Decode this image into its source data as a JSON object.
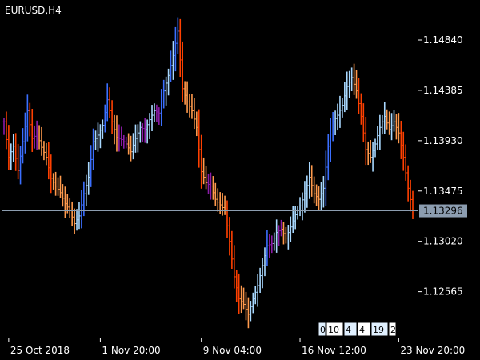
{
  "chart_data": {
    "type": "bar",
    "title": "EURUSD,H4",
    "chart_style": "OHLC bars, colored by indicator",
    "ylim": [
      1.1215,
      1.1518
    ],
    "y_ticks": [
      {
        "label": "1.14840",
        "value": 1.1484
      },
      {
        "label": "1.14385",
        "value": 1.14385
      },
      {
        "label": "1.13930",
        "value": 1.1393
      },
      {
        "label": "1.13475",
        "value": 1.13475
      },
      {
        "label": "1.13020",
        "value": 1.1302
      },
      {
        "label": "1.12565",
        "value": 1.12565
      }
    ],
    "x_ticks": [
      {
        "label": "25 Oct 2018",
        "index": 2
      },
      {
        "label": "1 Nov 20:00",
        "index": 41
      },
      {
        "label": "9 Nov 04:00",
        "index": 84
      },
      {
        "label": "16 Nov 12:00",
        "index": 126
      },
      {
        "label": "23 Nov 20:00",
        "index": 168
      }
    ],
    "current_price": {
      "label": "1.13296",
      "value": 1.13296
    },
    "grid": false,
    "colors": {
      "background": "#000000",
      "axis": "#ffffff",
      "bull_strong": "#3b6fff",
      "bull_weak": "#a8d8ff",
      "bear_strong": "#ff4000",
      "bear_weak": "#ff9a4d",
      "neutral": "#8b1ca8",
      "price_line": "#8c9db0",
      "price_label_bg": "#8c9db0"
    },
    "indicator_boxes": [
      {
        "label": "0",
        "color": "#e0f0ff"
      },
      {
        "label": "10",
        "color": "#ffffff"
      },
      {
        "label": "4",
        "color": "#e0f0ff"
      },
      {
        "label": "4",
        "color": "#ffffff"
      },
      {
        "label": "19",
        "color": "#e0f0ff"
      },
      {
        "label": "2",
        "color": "#ffffff"
      }
    ],
    "anchors": [
      [
        0,
        1.141
      ],
      [
        2,
        1.1378
      ],
      [
        4,
        1.1388
      ],
      [
        6,
        1.1366
      ],
      [
        8,
        1.1392
      ],
      [
        10,
        1.142
      ],
      [
        12,
        1.1395
      ],
      [
        14,
        1.1399
      ],
      [
        16,
        1.1387
      ],
      [
        18,
        1.1378
      ],
      [
        20,
        1.1359
      ],
      [
        22,
        1.1352
      ],
      [
        24,
        1.1346
      ],
      [
        26,
        1.1336
      ],
      [
        28,
        1.133
      ],
      [
        30,
        1.1318
      ],
      [
        32,
        1.1325
      ],
      [
        34,
        1.1345
      ],
      [
        36,
        1.136
      ],
      [
        38,
        1.1392
      ],
      [
        40,
        1.1398
      ],
      [
        42,
        1.1407
      ],
      [
        44,
        1.143
      ],
      [
        46,
        1.141
      ],
      [
        48,
        1.1396
      ],
      [
        50,
        1.1394
      ],
      [
        52,
        1.139
      ],
      [
        54,
        1.1383
      ],
      [
        56,
        1.1395
      ],
      [
        58,
        1.1405
      ],
      [
        60,
        1.1403
      ],
      [
        62,
        1.1412
      ],
      [
        64,
        1.142
      ],
      [
        66,
        1.1418
      ],
      [
        68,
        1.1438
      ],
      [
        70,
        1.1452
      ],
      [
        72,
        1.147
      ],
      [
        74,
        1.1492
      ],
      [
        76,
        1.144
      ],
      [
        78,
        1.1428
      ],
      [
        80,
        1.142
      ],
      [
        82,
        1.1405
      ],
      [
        84,
        1.1365
      ],
      [
        86,
        1.1355
      ],
      [
        88,
        1.1352
      ],
      [
        90,
        1.134
      ],
      [
        92,
        1.1335
      ],
      [
        94,
        1.133
      ],
      [
        96,
        1.1302
      ],
      [
        98,
        1.127
      ],
      [
        100,
        1.125
      ],
      [
        102,
        1.1245
      ],
      [
        104,
        1.1236
      ],
      [
        106,
        1.125
      ],
      [
        108,
        1.1262
      ],
      [
        110,
        1.128
      ],
      [
        112,
        1.1298
      ],
      [
        114,
        1.13
      ],
      [
        116,
        1.131
      ],
      [
        118,
        1.1313
      ],
      [
        120,
        1.1305
      ],
      [
        122,
        1.1315
      ],
      [
        124,
        1.1326
      ],
      [
        126,
        1.1334
      ],
      [
        128,
        1.1345
      ],
      [
        130,
        1.136
      ],
      [
        132,
        1.1345
      ],
      [
        134,
        1.134
      ],
      [
        136,
        1.135
      ],
      [
        138,
        1.1388
      ],
      [
        140,
        1.141
      ],
      [
        142,
        1.1416
      ],
      [
        144,
        1.1425
      ],
      [
        146,
        1.1442
      ],
      [
        148,
        1.145
      ],
      [
        150,
        1.1438
      ],
      [
        152,
        1.1415
      ],
      [
        154,
        1.1385
      ],
      [
        156,
        1.1378
      ],
      [
        158,
        1.139
      ],
      [
        160,
        1.1405
      ],
      [
        162,
        1.1415
      ],
      [
        164,
        1.1403
      ],
      [
        166,
        1.141
      ],
      [
        168,
        1.14
      ],
      [
        170,
        1.1378
      ],
      [
        172,
        1.135
      ],
      [
        174,
        1.13296
      ]
    ]
  }
}
